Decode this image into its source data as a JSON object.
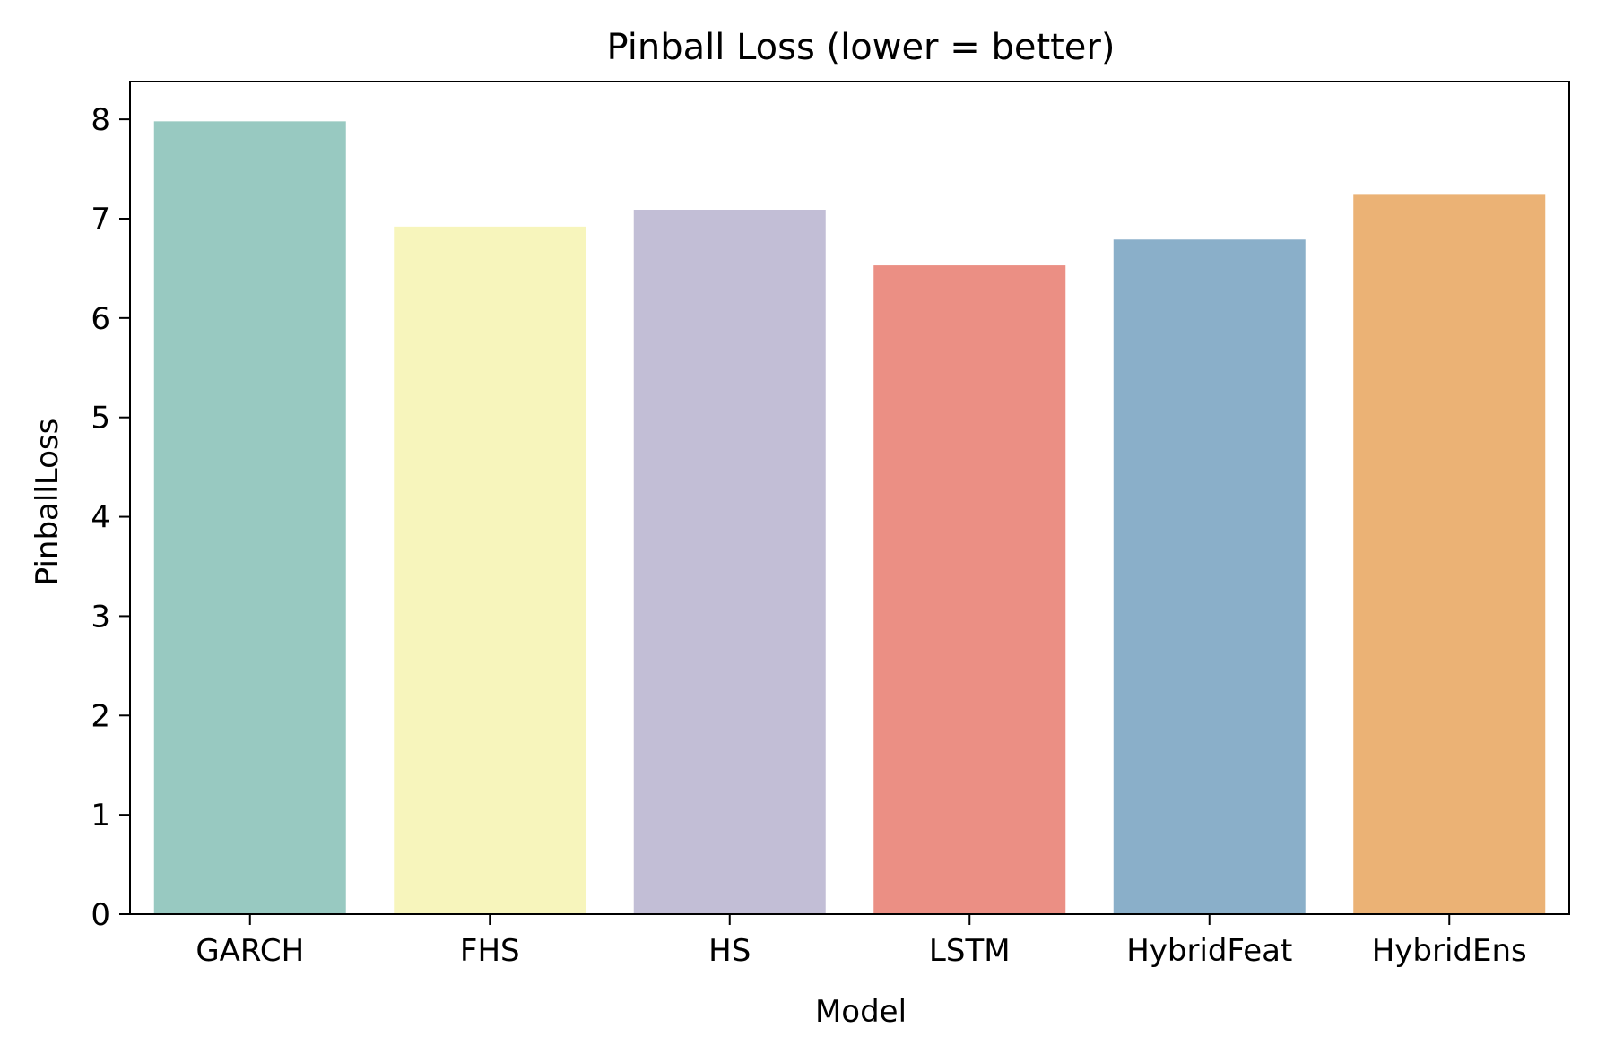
{
  "chart_data": {
    "type": "bar",
    "title": "Pinball Loss (lower = better)",
    "xlabel": "Model",
    "ylabel": "PinballLoss",
    "categories": [
      "GARCH",
      "FHS",
      "HS",
      "LSTM",
      "HybridFeat",
      "HybridEns"
    ],
    "values": [
      7.98,
      6.92,
      7.09,
      6.53,
      6.79,
      7.24
    ],
    "colors": [
      "#98c9c1",
      "#f7f5bc",
      "#c2bed6",
      "#eb8f84",
      "#8aafc9",
      "#ebb275"
    ],
    "ylim": [
      0,
      8.38
    ],
    "yticks": [
      0,
      1,
      2,
      3,
      4,
      5,
      6,
      7,
      8
    ],
    "grid": false,
    "legend": "none"
  }
}
